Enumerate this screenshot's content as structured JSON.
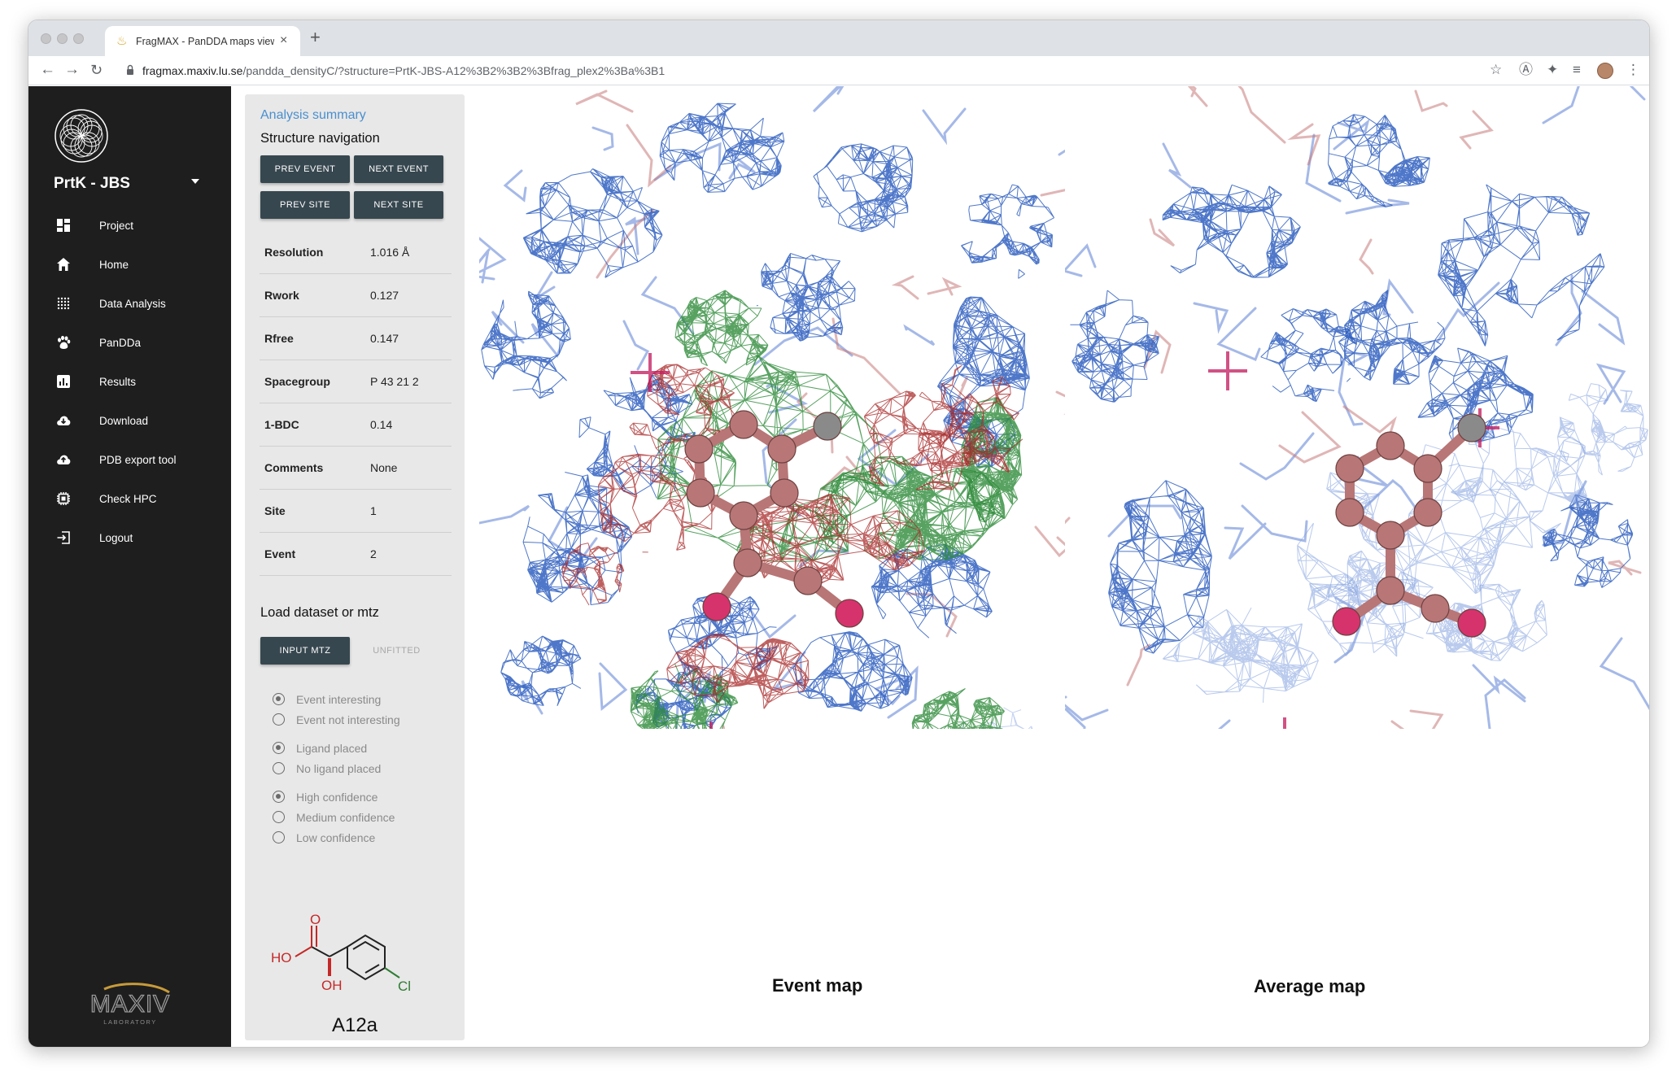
{
  "browser": {
    "tab_title": "FragMAX - PanDDA maps viewer",
    "url_host": "fragmax.maxiv.lu.se",
    "url_path": "/pandda_densityC/?structure=PrtK-JBS-A12%3B2%3B2%3Bfrag_plex2%3Ba%3B1"
  },
  "sidebar": {
    "project_name": "PrtK - JBS",
    "items": [
      {
        "label": "Project",
        "icon": "dashboard-icon"
      },
      {
        "label": "Home",
        "icon": "home-icon"
      },
      {
        "label": "Data Analysis",
        "icon": "grid-dots-icon"
      },
      {
        "label": "PanDDa",
        "icon": "paw-icon"
      },
      {
        "label": "Results",
        "icon": "bar-chart-icon"
      },
      {
        "label": "Download",
        "icon": "cloud-download-icon"
      },
      {
        "label": "PDB export tool",
        "icon": "cloud-upload-icon"
      },
      {
        "label": "Check HPC",
        "icon": "cpu-chip-icon"
      },
      {
        "label": "Logout",
        "icon": "logout-icon"
      }
    ],
    "footer_logo": "MAX IV LABORATORY"
  },
  "panel": {
    "summary_link": "Analysis summary",
    "nav_heading": "Structure navigation",
    "buttons": {
      "prev_event": "PREV EVENT",
      "next_event": "NEXT EVENT",
      "prev_site": "PREV SITE",
      "next_site": "NEXT SITE"
    },
    "info": [
      {
        "key": "Resolution",
        "value": "1.016 Å"
      },
      {
        "key": "Rwork",
        "value": "0.127"
      },
      {
        "key": "Rfree",
        "value": "0.147"
      },
      {
        "key": "Spacegroup",
        "value": "P 43 21 2"
      },
      {
        "key": "1-BDC",
        "value": "0.14"
      },
      {
        "key": "Comments",
        "value": "None"
      },
      {
        "key": "Site",
        "value": "1"
      },
      {
        "key": "Event",
        "value": "2"
      }
    ],
    "load_heading": "Load dataset or mtz",
    "input_mtz": "INPUT MTZ",
    "unfitted": "UNFITTED",
    "radios": [
      {
        "label": "Event interesting",
        "checked": true
      },
      {
        "label": "Event not interesting",
        "checked": false
      },
      {
        "label": "Ligand placed",
        "checked": true
      },
      {
        "label": "No ligand placed",
        "checked": false
      },
      {
        "label": "High confidence",
        "checked": true
      },
      {
        "label": "Medium confidence",
        "checked": false
      },
      {
        "label": "Low confidence",
        "checked": false
      }
    ],
    "structure_labels": {
      "ho": "HO",
      "o": "O",
      "oh": "OH",
      "cl": "Cl"
    },
    "ligand_code": "A12a"
  },
  "viewer": {
    "event_map_label": "Event map",
    "average_map_label": "Average map"
  },
  "colors": {
    "sidebar_bg": "#1e1e1e",
    "panel_bg": "#e8e8e8",
    "button_bg": "#37474f",
    "link": "#4a8fcf",
    "mesh_blue": "#2f5fbf",
    "mesh_green": "#2e8b3a",
    "mesh_red": "#a82a2a",
    "ligand": "#b87676"
  }
}
